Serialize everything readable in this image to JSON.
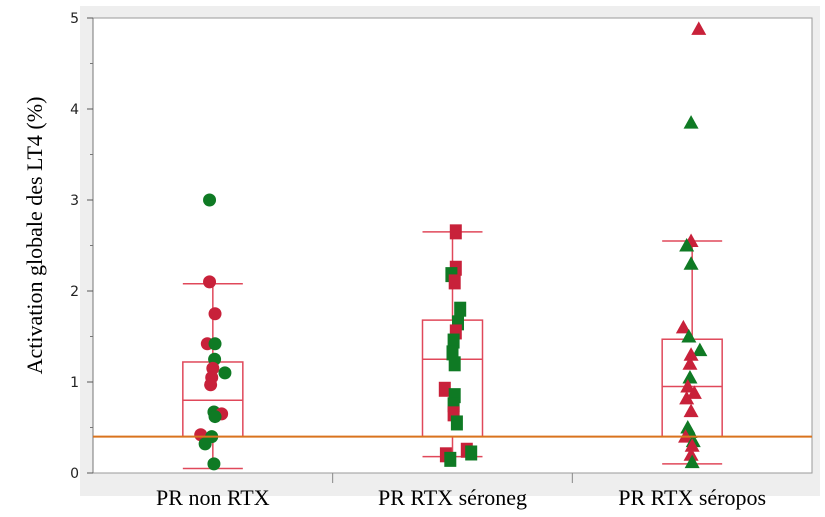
{
  "chart_data": {
    "type": "scatter",
    "ylabel": "Activation globale des LT4 (%)",
    "xlabel": "",
    "ylim": [
      0,
      5
    ],
    "yticks": [
      0,
      1,
      2,
      3,
      4,
      5
    ],
    "categories": [
      "PR non RTX",
      "PR RTX séroneg",
      "PR RTX séropos"
    ],
    "reference_line": 0.4,
    "colors": {
      "red": "#c8213a",
      "green": "#0f7a24",
      "box": "#e0485a",
      "refline": "#d9731e",
      "panel_bg": "#eeeeee"
    },
    "groups": [
      {
        "category": "PR non RTX",
        "marker": "circle",
        "box": {
          "q1": 0.4,
          "median": 0.8,
          "q3": 1.22,
          "whisker_low": 0.05,
          "whisker_high": 2.08
        },
        "points": [
          {
            "y": 3.0,
            "c": "green",
            "dx": -0.15
          },
          {
            "y": 2.1,
            "c": "red",
            "dx": -0.15
          },
          {
            "y": 1.75,
            "c": "red",
            "dx": 0.1
          },
          {
            "y": 1.42,
            "c": "red",
            "dx": -0.25
          },
          {
            "y": 1.42,
            "c": "green",
            "dx": 0.1
          },
          {
            "y": 1.25,
            "c": "green",
            "dx": 0.08
          },
          {
            "y": 1.15,
            "c": "red",
            "dx": 0.0
          },
          {
            "y": 1.1,
            "c": "green",
            "dx": 0.55
          },
          {
            "y": 1.05,
            "c": "red",
            "dx": -0.05
          },
          {
            "y": 0.97,
            "c": "red",
            "dx": -0.1
          },
          {
            "y": 0.67,
            "c": "green",
            "dx": 0.05
          },
          {
            "y": 0.65,
            "c": "red",
            "dx": 0.4
          },
          {
            "y": 0.62,
            "c": "green",
            "dx": 0.1
          },
          {
            "y": 0.42,
            "c": "red",
            "dx": -0.55
          },
          {
            "y": 0.4,
            "c": "green",
            "dx": -0.05
          },
          {
            "y": 0.32,
            "c": "green",
            "dx": -0.35
          },
          {
            "y": 0.1,
            "c": "green",
            "dx": 0.05
          }
        ]
      },
      {
        "category": "PR RTX séroneg",
        "marker": "square",
        "box": {
          "q1": 0.4,
          "median": 1.25,
          "q3": 1.68,
          "whisker_low": 0.18,
          "whisker_high": 2.65
        },
        "points": [
          {
            "y": 2.65,
            "c": "red",
            "dx": 0.15
          },
          {
            "y": 2.25,
            "c": "red",
            "dx": 0.15
          },
          {
            "y": 2.18,
            "c": "green",
            "dx": -0.05
          },
          {
            "y": 2.1,
            "c": "red",
            "dx": 0.1
          },
          {
            "y": 1.8,
            "c": "green",
            "dx": 0.35
          },
          {
            "y": 1.65,
            "c": "green",
            "dx": 0.25
          },
          {
            "y": 1.55,
            "c": "red",
            "dx": 0.15
          },
          {
            "y": 1.45,
            "c": "green",
            "dx": 0.05
          },
          {
            "y": 1.32,
            "c": "green",
            "dx": 0.0
          },
          {
            "y": 1.2,
            "c": "green",
            "dx": 0.1
          },
          {
            "y": 0.92,
            "c": "red",
            "dx": -0.35
          },
          {
            "y": 0.85,
            "c": "green",
            "dx": 0.1
          },
          {
            "y": 0.75,
            "c": "green",
            "dx": 0.05
          },
          {
            "y": 0.65,
            "c": "red",
            "dx": 0.05
          },
          {
            "y": 0.55,
            "c": "green",
            "dx": 0.2
          },
          {
            "y": 0.25,
            "c": "red",
            "dx": 0.65
          },
          {
            "y": 0.22,
            "c": "green",
            "dx": 0.85
          },
          {
            "y": 0.2,
            "c": "red",
            "dx": -0.3
          },
          {
            "y": 0.15,
            "c": "green",
            "dx": -0.1
          }
        ]
      },
      {
        "category": "PR RTX séropos",
        "marker": "triangle",
        "box": {
          "q1": 0.4,
          "median": 0.95,
          "q3": 1.47,
          "whisker_low": 0.1,
          "whisker_high": 2.55
        },
        "points": [
          {
            "y": 4.88,
            "c": "red",
            "dx": 0.3
          },
          {
            "y": 3.85,
            "c": "green",
            "dx": -0.05
          },
          {
            "y": 2.55,
            "c": "red",
            "dx": -0.05
          },
          {
            "y": 2.5,
            "c": "green",
            "dx": -0.25
          },
          {
            "y": 2.3,
            "c": "green",
            "dx": -0.05
          },
          {
            "y": 1.6,
            "c": "red",
            "dx": -0.4
          },
          {
            "y": 1.5,
            "c": "green",
            "dx": -0.15
          },
          {
            "y": 1.35,
            "c": "green",
            "dx": 0.35
          },
          {
            "y": 1.3,
            "c": "red",
            "dx": -0.05
          },
          {
            "y": 1.2,
            "c": "red",
            "dx": -0.1
          },
          {
            "y": 1.05,
            "c": "green",
            "dx": -0.1
          },
          {
            "y": 0.95,
            "c": "red",
            "dx": -0.2
          },
          {
            "y": 0.88,
            "c": "red",
            "dx": 0.1
          },
          {
            "y": 0.82,
            "c": "red",
            "dx": -0.25
          },
          {
            "y": 0.68,
            "c": "red",
            "dx": -0.05
          },
          {
            "y": 0.5,
            "c": "green",
            "dx": -0.2
          },
          {
            "y": 0.45,
            "c": "green",
            "dx": -0.1
          },
          {
            "y": 0.4,
            "c": "red",
            "dx": -0.3
          },
          {
            "y": 0.35,
            "c": "green",
            "dx": 0.05
          },
          {
            "y": 0.3,
            "c": "red",
            "dx": 0.0
          },
          {
            "y": 0.2,
            "c": "red",
            "dx": -0.05
          },
          {
            "y": 0.12,
            "c": "green",
            "dx": 0.0
          }
        ]
      }
    ]
  }
}
